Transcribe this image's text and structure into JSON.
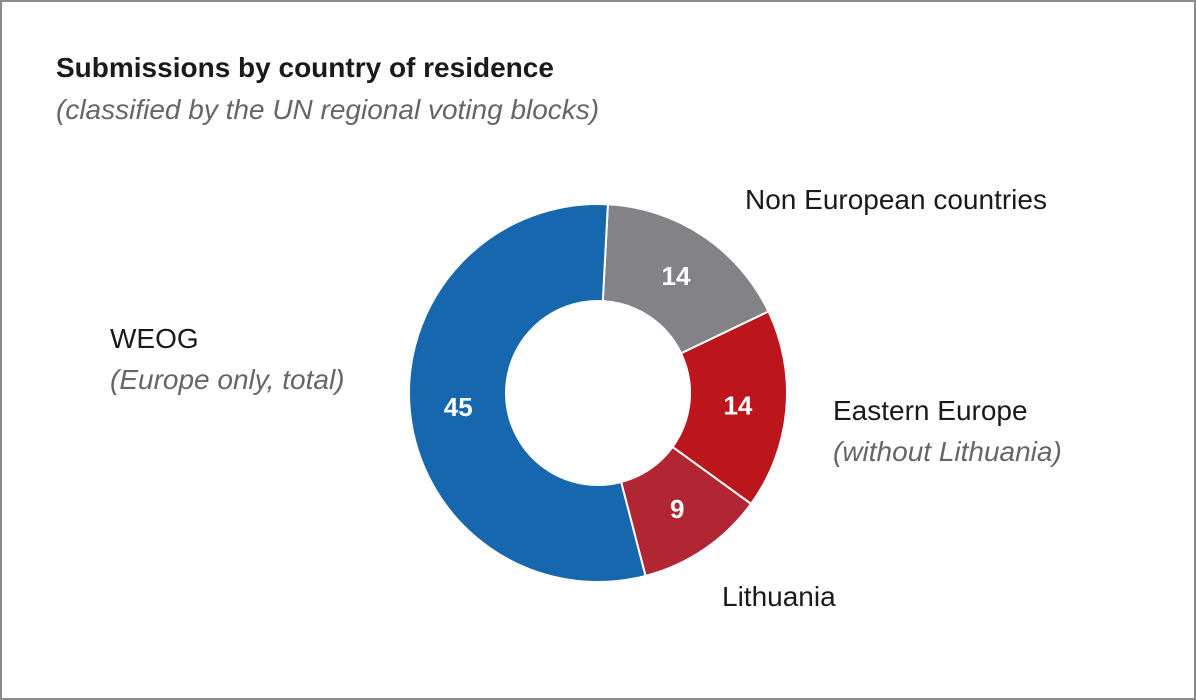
{
  "chart_data": {
    "type": "pie",
    "title": "Submissions by country of residence",
    "subtitle": "(classified by the UN regional voting blocks)",
    "series": [
      {
        "label": "Non European countries",
        "note": "",
        "value": 14,
        "color": "#838387"
      },
      {
        "label": "Eastern Europe",
        "note": "(without Lithuania)",
        "value": 14,
        "color": "#bd151c"
      },
      {
        "label": "Lithuania",
        "note": "",
        "value": 9,
        "color": "#b22533"
      },
      {
        "label": "WEOG",
        "note": "(Europe only, total)",
        "value": 45,
        "color": "#1667ae"
      }
    ],
    "legend": "none"
  }
}
